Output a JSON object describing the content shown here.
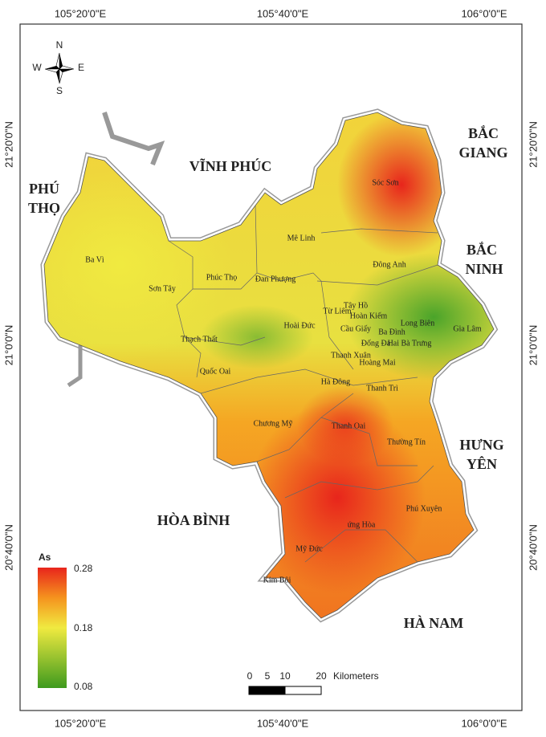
{
  "map": {
    "lon_labels": [
      "105°20'0\"E",
      "105°40'0\"E",
      "106°0'0\"E"
    ],
    "lat_labels": [
      "21°20'0\"N",
      "21°0'0\"N",
      "20°40'0\"N"
    ],
    "compass": {
      "n": "N",
      "s": "S",
      "e": "E",
      "w": "W"
    },
    "provinces": [
      [
        "VĨNH PHÚC"
      ],
      [
        "PHÚ",
        "THỌ"
      ],
      [
        "BẮC",
        "GIANG"
      ],
      [
        "BẮC",
        "NINH"
      ],
      [
        "HƯNG",
        "YÊN"
      ],
      [
        "HÒA BÌNH"
      ],
      [
        "HÀ NAM"
      ]
    ],
    "districts": [
      "Sóc Sơn",
      "Mê Linh",
      "Ba Vì",
      "Sơn Tây",
      "Phúc Thọ",
      "Đan Phượng",
      "Đông Anh",
      "Từ Liêm",
      "Tây Hồ",
      "Hoàn Kiếm",
      "Long Biên",
      "Cầu Giấy",
      "Ba Đình",
      "Đống Đa",
      "Hai Bà Trưng",
      "Gia Lâm",
      "Hoài Đức",
      "Thạch Thất",
      "Quốc Oai",
      "Thanh Xuân",
      "Hoàng Mai",
      "Hà Đông",
      "Thanh Trì",
      "Chương Mỹ",
      "Thanh Oai",
      "Thường Tín",
      "Phú Xuyên",
      "ứng Hòa",
      "Mỹ Đức",
      "Kim Bôi"
    ],
    "legend": {
      "title": "As",
      "max": 0.28,
      "mid": 0.18,
      "min": 0.08
    },
    "scale_bar": {
      "ticks": [
        0,
        5,
        10,
        20
      ],
      "unit": "Kilometers"
    }
  }
}
